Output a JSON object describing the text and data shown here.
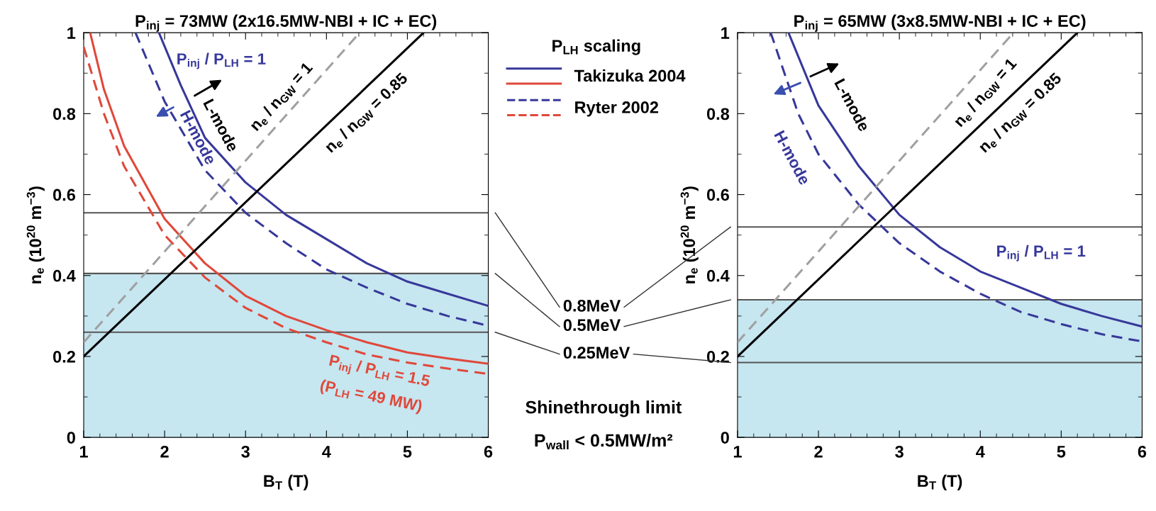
{
  "chart_data": [
    {
      "type": "line",
      "title": "P$_{inj}$ = 73MW (2x16.5MW-NBI + IC + EC)",
      "xlabel": "B$_{T}$ (T)",
      "ylabel": "n$_{e}$ (10$^{20}$ m$^{−3}$)",
      "xlim": [
        1,
        6
      ],
      "ylim": [
        0,
        1
      ],
      "xticks": [
        1,
        2,
        3,
        4,
        5,
        6
      ],
      "yticks": [
        0,
        0.2,
        0.4,
        0.6,
        0.8,
        1
      ],
      "grid": false,
      "legend": "right",
      "legend_title": "P$_{LH}$ scaling",
      "series": [
        {
          "name": "Takizuka 2004",
          "color": "#37389a",
          "line_style": "solid",
          "x": [
            1.93,
            2.2,
            2.5,
            3,
            3.5,
            4,
            4.5,
            5,
            5.5,
            6
          ],
          "values": [
            1.0,
            0.87,
            0.74,
            0.63,
            0.55,
            0.49,
            0.43,
            0.385,
            0.355,
            0.325
          ]
        },
        {
          "name": "Ryter 2002",
          "color": "#37389a",
          "line_style": "dashed",
          "x": [
            1.64,
            2,
            2.5,
            3,
            3.5,
            4,
            4.5,
            5,
            5.5,
            6
          ],
          "values": [
            1.0,
            0.83,
            0.66,
            0.555,
            0.48,
            0.415,
            0.37,
            0.33,
            0.3,
            0.276
          ]
        },
        {
          "color": "#e0483a",
          "line_style": "solid",
          "x": [
            1.08,
            1.25,
            1.5,
            2,
            2.5,
            3,
            3.5,
            4,
            4.5,
            5,
            5.5,
            6
          ],
          "values": [
            1.0,
            0.86,
            0.72,
            0.54,
            0.43,
            0.35,
            0.3,
            0.265,
            0.235,
            0.21,
            0.195,
            0.182
          ]
        },
        {
          "color": "#e0483a",
          "line_style": "dashed",
          "x": [
            1,
            1.25,
            1.5,
            2,
            2.5,
            3,
            3.5,
            4,
            4.5,
            5,
            5.5,
            6
          ],
          "values": [
            0.965,
            0.8,
            0.67,
            0.5,
            0.395,
            0.32,
            0.27,
            0.235,
            0.205,
            0.185,
            0.17,
            0.157
          ]
        },
        {
          "color": "#000000",
          "line_style": "solid",
          "x": [
            1,
            5.2
          ],
          "values": [
            0.2,
            1.0
          ]
        },
        {
          "color": "#a0a0a0",
          "line_style": "dashed",
          "x": [
            1,
            4.41
          ],
          "values": [
            0.235,
            1.0
          ]
        }
      ],
      "ref_lines": [
        {
          "axis": "y",
          "value": 0.555,
          "color": "#555555"
        },
        {
          "axis": "y",
          "value": 0.405,
          "color": "#555555"
        },
        {
          "axis": "y",
          "value": 0.26,
          "color": "#555555"
        }
      ],
      "bands": [
        {
          "axis": "y",
          "from": 0,
          "to": 0.405,
          "label": "Shinethrough limit",
          "color": "#c6e6f0"
        }
      ],
      "annotations": [
        "P$_{inj}$ / P$_{LH}$ = 1",
        "L-mode",
        "H-mode",
        "n$_{e}$ / n$_{GW}$ = 1",
        "n$_{e}$ / n$_{GW}$ = 0.85",
        "P$_{inj}$ / P$_{LH}$ = 1.5",
        "(P$_{LH}$ = 49 MW)",
        "P$_{wall}$ < 0.5MW/m²",
        "0.8MeV",
        "0.5MeV",
        "0.25MeV"
      ]
    },
    {
      "type": "line",
      "title": "P$_{inj}$ = 65MW (3x8.5MW-NBI + IC + EC)",
      "xlabel": "B$_{T}$ (T)",
      "ylabel": "n$_{e}$ (10$^{20}$ m$^{−3}$)",
      "xlim": [
        1,
        6
      ],
      "ylim": [
        0,
        1
      ],
      "xticks": [
        1,
        2,
        3,
        4,
        5,
        6
      ],
      "yticks": [
        0,
        0.2,
        0.4,
        0.6,
        0.8,
        1
      ],
      "grid": false,
      "series": [
        {
          "color": "#37389a",
          "line_style": "solid",
          "x": [
            1.63,
            2,
            2.5,
            3,
            3.5,
            4,
            4.5,
            5,
            5.5,
            6
          ],
          "values": [
            1.0,
            0.82,
            0.67,
            0.55,
            0.47,
            0.41,
            0.37,
            0.33,
            0.3,
            0.274
          ]
        },
        {
          "color": "#37389a",
          "line_style": "dashed",
          "x": [
            1.41,
            1.75,
            2,
            2.5,
            3,
            3.5,
            4,
            4.5,
            5,
            5.5,
            6
          ],
          "values": [
            1.0,
            0.8,
            0.7,
            0.575,
            0.48,
            0.41,
            0.355,
            0.31,
            0.28,
            0.255,
            0.237
          ]
        },
        {
          "color": "#000000",
          "line_style": "solid",
          "x": [
            1,
            5.2
          ],
          "values": [
            0.2,
            1.0
          ]
        },
        {
          "color": "#a0a0a0",
          "line_style": "dashed",
          "x": [
            1,
            4.41
          ],
          "values": [
            0.235,
            1.0
          ]
        }
      ],
      "ref_lines": [
        {
          "axis": "y",
          "value": 0.52,
          "color": "#555555"
        },
        {
          "axis": "y",
          "value": 0.34,
          "color": "#555555"
        },
        {
          "axis": "y",
          "value": 0.185,
          "color": "#555555"
        }
      ],
      "bands": [
        {
          "axis": "y",
          "from": 0,
          "to": 0.34,
          "color": "#c6e6f0"
        }
      ],
      "annotations": [
        "L-mode",
        "H-mode",
        "n$_{e}$ / n$_{GW}$ = 1",
        "n$_{e}$ / n$_{GW}$ = 0.85",
        "P$_{inj}$ / P$_{LH}$ = 1"
      ]
    }
  ]
}
